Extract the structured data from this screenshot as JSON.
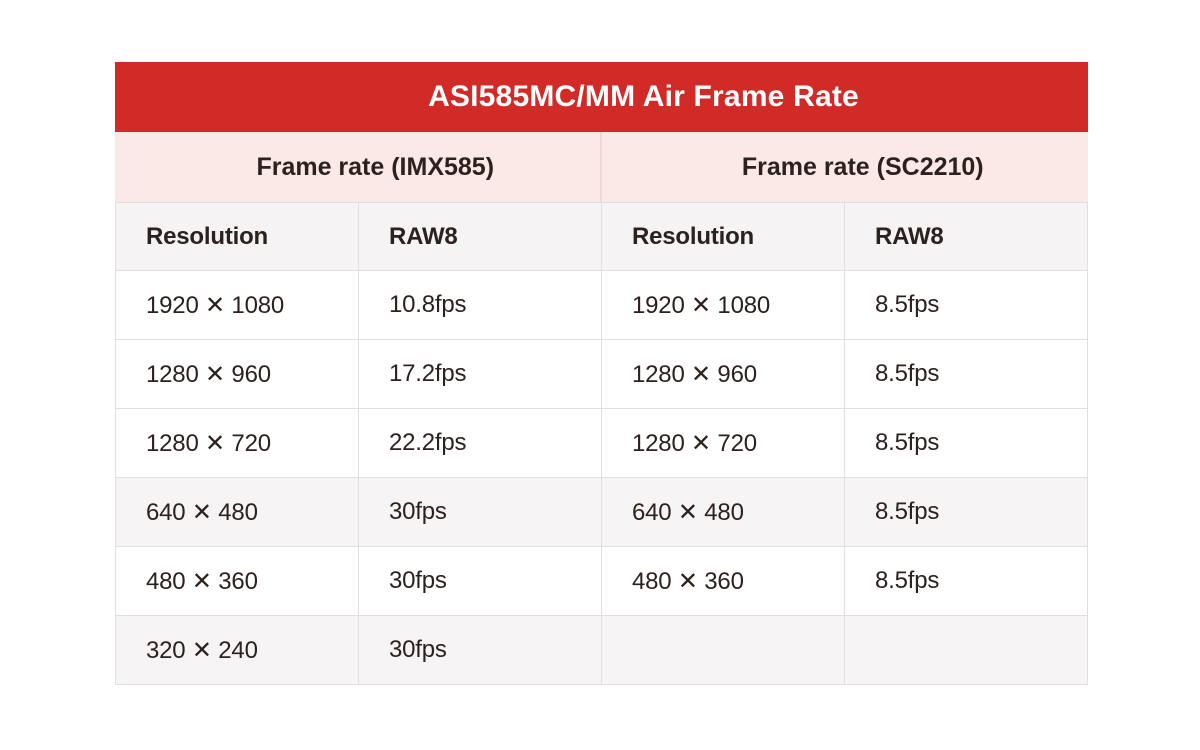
{
  "table": {
    "title": "ASI585MC/MM Air Frame Rate",
    "group_headers": [
      {
        "label": "Frame rate (IMX585)"
      },
      {
        "label": "Frame rate (SC2210)"
      }
    ],
    "column_headers": [
      "Resolution",
      "RAW8",
      "Resolution",
      "RAW8"
    ],
    "rows": [
      {
        "cells": [
          "1920 ✕ 1080",
          "10.8fps",
          "1920 ✕ 1080",
          "8.5fps"
        ]
      },
      {
        "cells": [
          "1280 ✕ 960",
          "17.2fps",
          "1280 ✕ 960",
          "8.5fps"
        ]
      },
      {
        "cells": [
          "1280 ✕ 720",
          "22.2fps",
          "1280 ✕ 720",
          "8.5fps"
        ]
      },
      {
        "cells": [
          "640 ✕ 480",
          "30fps",
          "640 ✕ 480",
          "8.5fps"
        ]
      },
      {
        "cells": [
          "480 ✕ 360",
          "30fps",
          "480 ✕ 360",
          "8.5fps"
        ]
      },
      {
        "cells": [
          "320 ✕ 240",
          "30fps",
          "",
          ""
        ]
      }
    ],
    "colors": {
      "header_red": "#d22a27",
      "subheader_pink": "#fbe9e8",
      "column_header_gray": "#f5f3f3",
      "shaded_row_gray": "#f6f4f4",
      "border": "#e2dfdf",
      "title_text": "#ffffff",
      "body_text": "#2b211e"
    }
  },
  "chart_data": {
    "type": "table",
    "title": "ASI585MC/MM Air Frame Rate",
    "column_groups": [
      {
        "label": "Frame rate (IMX585)",
        "columns": [
          "Resolution",
          "RAW8"
        ]
      },
      {
        "label": "Frame rate (SC2210)",
        "columns": [
          "Resolution",
          "RAW8"
        ]
      }
    ],
    "imx585_rows": [
      {
        "resolution": "1920 ✕ 1080",
        "raw8_fps": 10.8
      },
      {
        "resolution": "1280 ✕ 960",
        "raw8_fps": 17.2
      },
      {
        "resolution": "1280 ✕ 720",
        "raw8_fps": 22.2
      },
      {
        "resolution": "640 ✕ 480",
        "raw8_fps": 30
      },
      {
        "resolution": "480 ✕ 360",
        "raw8_fps": 30
      },
      {
        "resolution": "320 ✕ 240",
        "raw8_fps": 30
      }
    ],
    "sc2210_rows": [
      {
        "resolution": "1920 ✕ 1080",
        "raw8_fps": 8.5
      },
      {
        "resolution": "1280 ✕ 960",
        "raw8_fps": 8.5
      },
      {
        "resolution": "1280 ✕ 720",
        "raw8_fps": 8.5
      },
      {
        "resolution": "640 ✕ 480",
        "raw8_fps": 8.5
      },
      {
        "resolution": "480 ✕ 360",
        "raw8_fps": 8.5
      }
    ]
  }
}
